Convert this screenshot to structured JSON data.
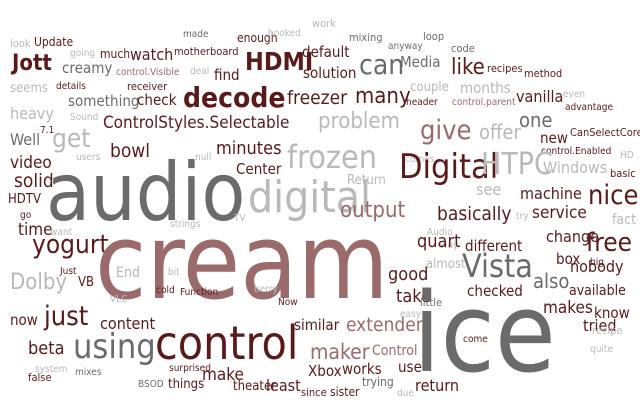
{
  "palette": {
    "dark": "#5a1a1a",
    "mauve": "#9b6b6b",
    "slate": "#6b6b6b",
    "light": "#b9b9b9"
  },
  "words": [
    "look",
    "Update",
    "going",
    "much",
    "made",
    "enough",
    "hooked",
    "work",
    "mixing",
    "anyway",
    "loop",
    "code",
    "Jott",
    "creamy",
    "watch",
    "motherboard",
    "HDMI",
    "default",
    "can",
    "Media",
    "like",
    "recipes",
    "method",
    "seems",
    "details",
    "control.Visible",
    "receiver",
    "deal",
    "find",
    "solution",
    "couple",
    "months",
    "even",
    "heavy",
    "something",
    "check",
    "decode",
    "freezer",
    "many",
    "header",
    "control.parent",
    "vanilla",
    "advantage",
    "Sound",
    "ControlStyles.Selectable",
    "problem",
    "one",
    "CanSelectCore",
    "Well",
    "7.1",
    "get",
    "bowl",
    "minutes",
    "frozen",
    "give",
    "offer",
    "new",
    "control.Enabled",
    "HD",
    "video",
    "users",
    "null",
    "Center",
    "comes",
    "Windows",
    "basic",
    "solid",
    "audio",
    "digital",
    "Digital",
    "HTPC",
    "nice",
    "HDTV",
    "Return",
    "output",
    "see",
    "machine",
    "fact",
    "go",
    "time",
    "want",
    "strings",
    "TV",
    "basically",
    "try",
    "service",
    "free",
    "yogurt",
    "cream",
    "Audio",
    "way",
    "quart",
    "different",
    "change",
    "Just",
    "End",
    "Vista",
    "box",
    "big",
    "nobody",
    "Dolby",
    "VB",
    "bit",
    "almost",
    "good",
    "also",
    "available",
    "now",
    "just",
    "VLC",
    "cold",
    "Function",
    "berry",
    "Now",
    "take",
    "little",
    "checked",
    "content",
    "extender",
    "similar",
    "easy",
    "makes",
    "know",
    "beta",
    "using",
    "control",
    "tried",
    "recipe",
    "false",
    "system",
    "mixes",
    "maker",
    "Control",
    "come",
    "quite",
    "surprised",
    "make",
    "use",
    "works",
    "ice",
    "return",
    "things",
    "theater",
    "least",
    "Xbox",
    "trying",
    "BSOD",
    "since",
    "sister",
    "due"
  ]
}
